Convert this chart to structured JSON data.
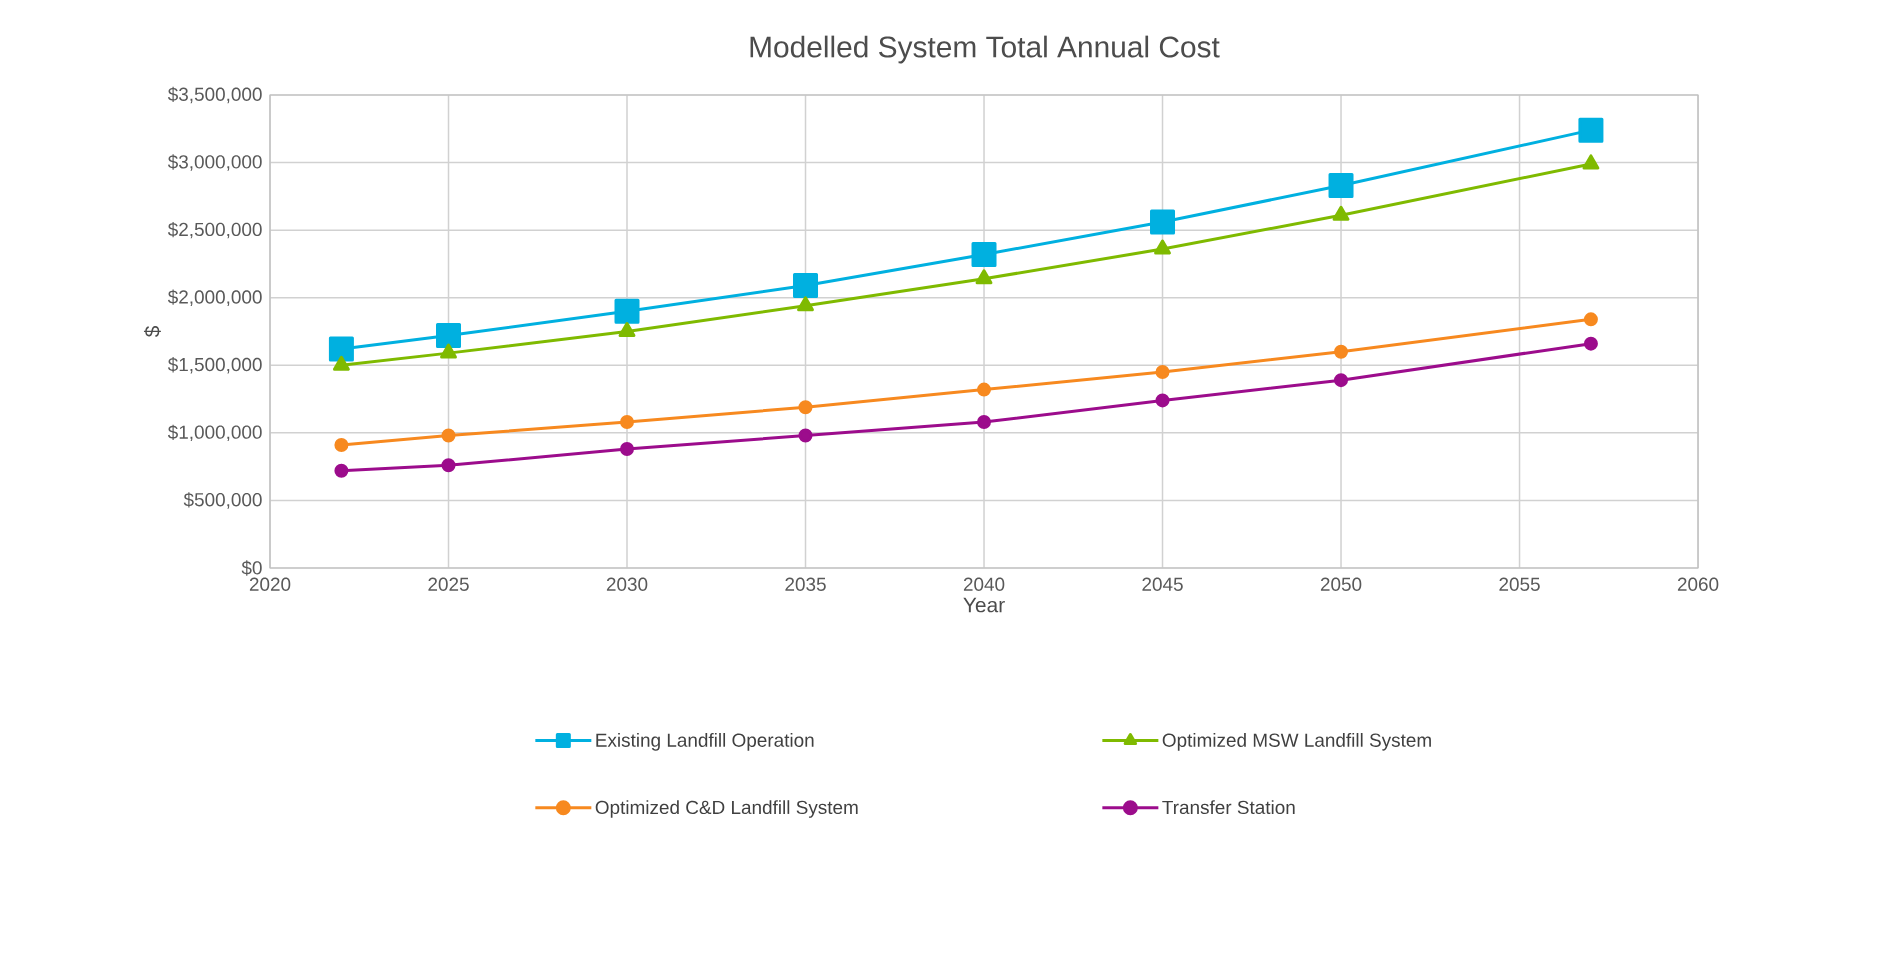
{
  "chart_data": {
    "type": "line",
    "title": "Modelled System Total Annual Cost",
    "xlabel": "Year",
    "ylabel": "$",
    "x": [
      2022,
      2025,
      2030,
      2035,
      2040,
      2045,
      2050,
      2057
    ],
    "series": [
      {
        "name": "Existing Landfill Operation",
        "color": "#00b0e0",
        "marker": "square",
        "values": [
          1620000,
          1720000,
          1900000,
          2090000,
          2320000,
          2560000,
          2830000,
          3240000
        ]
      },
      {
        "name": "Optimized MSW Landfill System",
        "color": "#7fba00",
        "marker": "triangle",
        "values": [
          1500000,
          1590000,
          1750000,
          1940000,
          2140000,
          2360000,
          2610000,
          2990000
        ]
      },
      {
        "name": "Optimized C&D Landfill System",
        "color": "#f7891f",
        "marker": "circle",
        "values": [
          910000,
          980000,
          1080000,
          1190000,
          1320000,
          1450000,
          1600000,
          1840000
        ]
      },
      {
        "name": "Transfer Station",
        "color": "#9c0c8c",
        "marker": "circle",
        "values": [
          720000,
          760000,
          880000,
          980000,
          1080000,
          1240000,
          1390000,
          1660000
        ]
      }
    ],
    "xlim": [
      2020,
      2060
    ],
    "xticks": [
      2020,
      2025,
      2030,
      2035,
      2040,
      2045,
      2050,
      2055,
      2060
    ],
    "ylim": [
      0,
      3500000
    ],
    "yticks": [
      {
        "value": 0,
        "label": "$0"
      },
      {
        "value": 500000,
        "label": "$500,000"
      },
      {
        "value": 1000000,
        "label": "$1,000,000"
      },
      {
        "value": 1500000,
        "label": "$1,500,000"
      },
      {
        "value": 2000000,
        "label": "$2,000,000"
      },
      {
        "value": 2500000,
        "label": "$2,500,000"
      },
      {
        "value": 3000000,
        "label": "$3,000,000"
      },
      {
        "value": 3500000,
        "label": "$3,500,000"
      }
    ],
    "grid": true,
    "legend": "bottom",
    "line_style": "solid"
  }
}
